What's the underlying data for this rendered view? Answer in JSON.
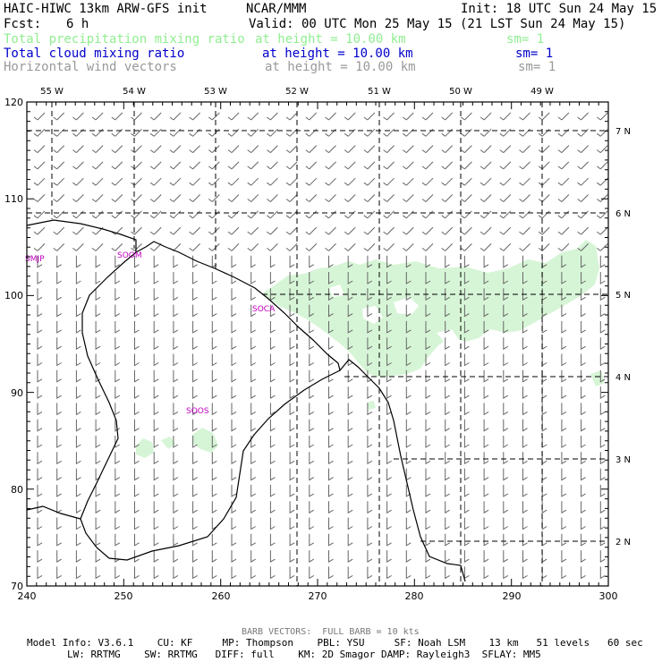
{
  "header": {
    "model": "HAIC-HIWC 13km ARW-GFS init",
    "org": "NCAR/MMM",
    "init": "Init: 18 UTC Sun 24 May 15",
    "fcst_label": "Fcst:",
    "fcst_value": "6 h",
    "valid": "Valid: 00 UTC Mon 25 May 15 (21 LST Sun 24 May 15)"
  },
  "fields": [
    {
      "name": "Total precipitation mixing ratio",
      "height": "at height = 10.00 km",
      "sm": "sm= 1",
      "color": "#90ee90"
    },
    {
      "name": "Total cloud mixing ratio",
      "height": "at height = 10.00 km",
      "sm": "sm= 1",
      "color": "#0000cc"
    },
    {
      "name": "Horizontal wind vectors",
      "height": "at height = 10.00 km",
      "sm": "sm= 1",
      "color": "#999999"
    }
  ],
  "map": {
    "x_ticks": [
      "240",
      "250",
      "260",
      "270",
      "280",
      "290",
      "300"
    ],
    "y_ticks": [
      "70",
      "80",
      "90",
      "100",
      "110",
      "120"
    ],
    "lon_labels": [
      "55 W",
      "54 W",
      "53 W",
      "52 W",
      "51 W",
      "50 W",
      "49 W"
    ],
    "lat_labels": [
      "7 N",
      "6 N",
      "5 N",
      "4 N",
      "3 N",
      "2 N"
    ],
    "stations": [
      "SMJP",
      "SOOM",
      "SOCA",
      "SOOS"
    ],
    "precip_color": "#d6f5d6"
  },
  "footer": {
    "barb": "BARB VECTORS:  FULL BARB = 10 kts",
    "line1": "Model Info: V3.6.1    CU: KF     MP: Thompson    PBL: YSU     SF: Noah LSM    13 km   51 levels   60 sec",
    "line2": "LW: RRTMG    SW: RRTMG   DIFF: full    KM: 2D Smagor DAMP: Rayleigh3  SFLAY: MM5"
  }
}
